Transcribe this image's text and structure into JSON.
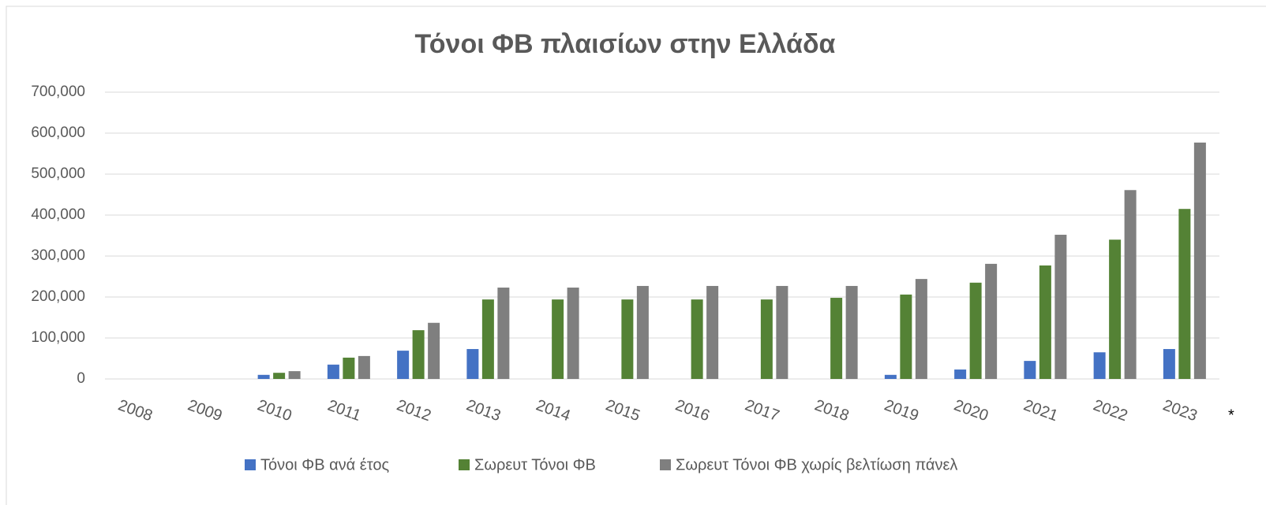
{
  "chart_data": {
    "type": "bar",
    "title": "Τόνοι ΦΒ πλαισίων στην Ελλάδα",
    "categories": [
      "2008",
      "2009",
      "2010",
      "2011",
      "2012",
      "2013",
      "2014",
      "2015",
      "2016",
      "2017",
      "2018",
      "2019",
      "2020",
      "2021",
      "2022",
      "2023"
    ],
    "annotation": "*",
    "series": [
      {
        "name": "Τόνοι ΦΒ ανά έτος",
        "color": "#4472c4",
        "values": [
          0,
          0,
          10000,
          35000,
          69000,
          73000,
          0,
          0,
          0,
          0,
          0,
          10000,
          23000,
          44000,
          65000,
          73000
        ]
      },
      {
        "name": "Σωρευτ Τόνοι ΦΒ",
        "color": "#548235",
        "values": [
          0,
          0,
          15000,
          52000,
          119000,
          194000,
          194000,
          194000,
          194000,
          194000,
          198000,
          206000,
          235000,
          277000,
          340000,
          415000
        ]
      },
      {
        "name": "Σωρευτ Τόνοι ΦΒ χωρίς βελτίωση πάνελ",
        "color": "#7f7f7f",
        "values": [
          0,
          0,
          19000,
          56000,
          137000,
          223000,
          223000,
          227000,
          227000,
          227000,
          227000,
          244000,
          281000,
          352000,
          461000,
          577000
        ]
      }
    ],
    "ylim": [
      0,
      700000
    ],
    "yticks": [
      0,
      {
        "value": 100000,
        "label": "100,000"
      },
      {
        "value": 200000,
        "label": "200,000"
      },
      {
        "value": 300000,
        "label": "300,000"
      },
      {
        "value": 400000,
        "label": "400,000"
      },
      {
        "value": 500000,
        "label": "500,000"
      },
      {
        "value": 600000,
        "label": "600,000"
      },
      {
        "value": 700000,
        "label": "700,000"
      }
    ],
    "grid": true,
    "legend": "bottom"
  }
}
